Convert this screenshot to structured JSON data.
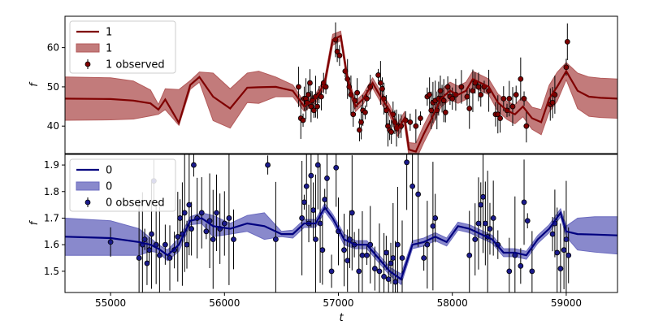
{
  "chart_data": [
    {
      "type": "line",
      "panel": "top",
      "xlabel": "",
      "ylabel": "f",
      "xlim": [
        54600,
        59450
      ],
      "ylim": [
        33,
        68
      ],
      "yticks": [
        40,
        50,
        60
      ],
      "legend": {
        "placement": "top-left",
        "entries": [
          {
            "label": "1",
            "kind": "line"
          },
          {
            "label": "1",
            "kind": "band"
          },
          {
            "label": "1 observed",
            "kind": "errorbar"
          }
        ]
      },
      "colors": {
        "line": "#7f0000",
        "band": "#b35a5a",
        "points": "#7f0000"
      },
      "series": [
        {
          "role": "model_mean",
          "x": [
            54600,
            55000,
            55200,
            55350,
            55420,
            55480,
            55600,
            55700,
            55780,
            55900,
            56050,
            56200,
            56300,
            56450,
            56600,
            56700,
            56800,
            56880,
            56950,
            57020,
            57080,
            57150,
            57220,
            57300,
            57380,
            57450,
            57520,
            57580,
            57620,
            57680,
            57750,
            57820,
            57900,
            57980,
            58050,
            58120,
            58180,
            58250,
            58320,
            58400,
            58480,
            58550,
            58620,
            58700,
            58780,
            58850,
            58920,
            59000,
            59100,
            59200,
            59300,
            59450
          ],
          "y": [
            47,
            46.9,
            46.5,
            45.8,
            44.2,
            46.8,
            40.8,
            50.5,
            52.5,
            47.5,
            44.5,
            49.8,
            49.9,
            50,
            49,
            45,
            47,
            51,
            62,
            63,
            52,
            45,
            47,
            51,
            47,
            44,
            39,
            42,
            34,
            33.5,
            38,
            42,
            47,
            49,
            48,
            49,
            52,
            51,
            50,
            46,
            44,
            43,
            45,
            42,
            41,
            47,
            50,
            54,
            49,
            47.5,
            47.2,
            47
          ]
        },
        {
          "role": "band_upper",
          "x": [
            54600,
            55000,
            55200,
            55350,
            55420,
            55480,
            55600,
            55700,
            55780,
            55900,
            56050,
            56200,
            56300,
            56450,
            56600,
            56700,
            56800,
            56880,
            56950,
            57020,
            57080,
            57150,
            57220,
            57300,
            57380,
            57450,
            57520,
            57580,
            57620,
            57680,
            57750,
            57820,
            57900,
            57980,
            58050,
            58120,
            58180,
            58250,
            58320,
            58400,
            58480,
            58550,
            58620,
            58700,
            58780,
            58850,
            58920,
            59000,
            59100,
            59200,
            59300,
            59450
          ],
          "y": [
            52.5,
            52.3,
            51.5,
            49.2,
            45.5,
            49.5,
            49.3,
            51.6,
            53.8,
            53.5,
            49.5,
            53.5,
            54,
            52.5,
            50.5,
            46.2,
            48.2,
            52.2,
            63.4,
            64.2,
            53.3,
            46.3,
            48.3,
            52.3,
            48.4,
            45.4,
            40.6,
            43.6,
            35.8,
            35.6,
            40.2,
            44.2,
            49.2,
            51.2,
            50.2,
            51.2,
            54,
            53,
            52,
            48.2,
            46.3,
            45.4,
            47.6,
            44.8,
            44.2,
            50.4,
            53.7,
            56.2,
            53.5,
            52.5,
            52.2,
            52
          ]
        },
        {
          "role": "band_lower",
          "x": [
            54600,
            55000,
            55200,
            55350,
            55420,
            55480,
            55600,
            55700,
            55780,
            55900,
            56050,
            56200,
            56300,
            56450,
            56600,
            56700,
            56800,
            56880,
            56950,
            57020,
            57080,
            57150,
            57220,
            57300,
            57380,
            57450,
            57520,
            57580,
            57620,
            57680,
            57750,
            57820,
            57900,
            57980,
            58050,
            58120,
            58180,
            58250,
            58320,
            58400,
            58480,
            58550,
            58620,
            58700,
            58780,
            58850,
            58920,
            59000,
            59100,
            59200,
            59300,
            59450
          ],
          "y": [
            41.5,
            41.6,
            41.8,
            42.6,
            43,
            44.2,
            40.2,
            49.4,
            51.2,
            41.4,
            39.5,
            46,
            45.8,
            47.5,
            47.5,
            43.8,
            45.8,
            49.8,
            60.6,
            61.8,
            50.7,
            43.7,
            45.7,
            49.7,
            45.6,
            42.6,
            37.4,
            40.4,
            32.2,
            31.4,
            35.8,
            39.8,
            44.8,
            46.8,
            45.8,
            46.8,
            50,
            49,
            48,
            43.8,
            41.7,
            40.6,
            42.4,
            39.2,
            37.8,
            43.6,
            46.3,
            51.8,
            44.5,
            42.5,
            42.2,
            42
          ]
        },
        {
          "role": "observed",
          "name": "1 observed",
          "x": [
            56650,
            56670,
            56690,
            56700,
            56715,
            56725,
            56735,
            56750,
            56760,
            56770,
            56785,
            56800,
            56815,
            56830,
            56850,
            56870,
            56890,
            56975,
            56990,
            57010,
            57060,
            57080,
            57095,
            57110,
            57130,
            57145,
            57165,
            57185,
            57200,
            57215,
            57235,
            57250,
            57280,
            57350,
            57370,
            57385,
            57400,
            57420,
            57435,
            57450,
            57465,
            57480,
            57495,
            57510,
            57530,
            57550,
            57590,
            57630,
            57680,
            57720,
            57780,
            57800,
            57815,
            57830,
            57850,
            57865,
            57880,
            57895,
            57910,
            57925,
            57940,
            57960,
            57980,
            58000,
            58030,
            58080,
            58130,
            58150,
            58180,
            58200,
            58230,
            58250,
            58280,
            58320,
            58380,
            58400,
            58420,
            58450,
            58480,
            58500,
            58530,
            58560,
            58600,
            58630,
            58650,
            58860,
            58880,
            58900,
            59000,
            59010
          ],
          "y": [
            50,
            42,
            41.5,
            47,
            47,
            46,
            48,
            51,
            45,
            46.5,
            44,
            47.5,
            45,
            48,
            47.5,
            51,
            50,
            62,
            59,
            58,
            54,
            52,
            50,
            48,
            43,
            46.5,
            48.5,
            39,
            41,
            44,
            43.5,
            47,
            50,
            53,
            51,
            49.5,
            47,
            44,
            40,
            39,
            38.5,
            43,
            41,
            39.5,
            40,
            40,
            41.5,
            41,
            40,
            42,
            47.5,
            48,
            44,
            46,
            46.5,
            44,
            47,
            49,
            47,
            46.5,
            43.5,
            50,
            47.5,
            47,
            48,
            50,
            47.5,
            44.5,
            49,
            51,
            50,
            48,
            50,
            49,
            43,
            43,
            42,
            47,
            44,
            47,
            45,
            48,
            52,
            47,
            40,
            45.5,
            46,
            48,
            55,
            61.5
          ]
        }
      ]
    },
    {
      "type": "line",
      "panel": "bottom",
      "xlabel": "t",
      "ylabel": "f",
      "xlim": [
        54600,
        59450
      ],
      "ylim": [
        1.42,
        1.94
      ],
      "xticks": [
        55000,
        56000,
        57000,
        58000,
        59000
      ],
      "yticks": [
        1.5,
        1.6,
        1.7,
        1.8,
        1.9
      ],
      "legend": {
        "placement": "top-left",
        "entries": [
          {
            "label": "0",
            "kind": "line"
          },
          {
            "label": "0",
            "kind": "band"
          },
          {
            "label": "0 observed",
            "kind": "errorbar"
          }
        ]
      },
      "colors": {
        "line": "#00007f",
        "band": "#6b6bbf",
        "points": "#1a1a8c"
      },
      "series": [
        {
          "role": "model_mean",
          "x": [
            54600,
            55000,
            55250,
            55350,
            55420,
            55500,
            55600,
            55700,
            55800,
            55900,
            56050,
            56200,
            56350,
            56500,
            56600,
            56700,
            56800,
            56880,
            56950,
            57050,
            57150,
            57250,
            57350,
            57450,
            57550,
            57650,
            57750,
            57850,
            57950,
            58050,
            58150,
            58250,
            58350,
            58450,
            58550,
            58650,
            58750,
            58850,
            58950,
            59000,
            59100,
            59250,
            59450
          ],
          "y": [
            1.63,
            1.625,
            1.61,
            1.6,
            1.585,
            1.56,
            1.6,
            1.69,
            1.7,
            1.67,
            1.66,
            1.68,
            1.67,
            1.64,
            1.64,
            1.68,
            1.68,
            1.74,
            1.7,
            1.62,
            1.6,
            1.6,
            1.55,
            1.5,
            1.47,
            1.6,
            1.61,
            1.63,
            1.61,
            1.67,
            1.66,
            1.64,
            1.62,
            1.57,
            1.57,
            1.56,
            1.62,
            1.66,
            1.72,
            1.65,
            1.64,
            1.638,
            1.635
          ]
        },
        {
          "role": "band_upper",
          "x": [
            54600,
            55000,
            55250,
            55350,
            55420,
            55500,
            55600,
            55700,
            55800,
            55900,
            56050,
            56200,
            56350,
            56500,
            56600,
            56700,
            56800,
            56880,
            56950,
            57050,
            57150,
            57250,
            57350,
            57450,
            57550,
            57650,
            57750,
            57850,
            57950,
            58050,
            58150,
            58250,
            58350,
            58450,
            58550,
            58650,
            58750,
            58850,
            58950,
            59000,
            59100,
            59250,
            59450
          ],
          "y": [
            1.7,
            1.69,
            1.66,
            1.625,
            1.6,
            1.58,
            1.625,
            1.705,
            1.72,
            1.71,
            1.68,
            1.71,
            1.72,
            1.65,
            1.655,
            1.695,
            1.695,
            1.755,
            1.715,
            1.64,
            1.615,
            1.615,
            1.565,
            1.515,
            1.49,
            1.615,
            1.625,
            1.645,
            1.625,
            1.685,
            1.675,
            1.655,
            1.635,
            1.585,
            1.585,
            1.575,
            1.635,
            1.675,
            1.735,
            1.67,
            1.7,
            1.705,
            1.705
          ]
        },
        {
          "role": "band_lower",
          "x": [
            54600,
            55000,
            55250,
            55350,
            55420,
            55500,
            55600,
            55700,
            55800,
            55900,
            56050,
            56200,
            56350,
            56500,
            56600,
            56700,
            56800,
            56880,
            56950,
            57050,
            57150,
            57250,
            57350,
            57450,
            57550,
            57650,
            57750,
            57850,
            57950,
            58050,
            58150,
            58250,
            58350,
            58450,
            58550,
            58650,
            58750,
            58850,
            58950,
            59000,
            59100,
            59250,
            59450
          ],
          "y": [
            1.56,
            1.56,
            1.56,
            1.575,
            1.57,
            1.54,
            1.575,
            1.675,
            1.68,
            1.63,
            1.64,
            1.65,
            1.62,
            1.63,
            1.625,
            1.665,
            1.665,
            1.725,
            1.685,
            1.6,
            1.585,
            1.585,
            1.535,
            1.485,
            1.45,
            1.585,
            1.595,
            1.615,
            1.595,
            1.655,
            1.645,
            1.625,
            1.605,
            1.555,
            1.555,
            1.545,
            1.605,
            1.645,
            1.705,
            1.63,
            1.58,
            1.572,
            1.565
          ]
        },
        {
          "role": "observed",
          "name": "0 observed",
          "x": [
            55000,
            55250,
            55280,
            55300,
            55320,
            55340,
            55360,
            55380,
            55400,
            55430,
            55480,
            55520,
            55560,
            55590,
            55610,
            55630,
            55650,
            55670,
            55690,
            55710,
            55730,
            55760,
            55800,
            55840,
            55870,
            55900,
            55930,
            55960,
            56000,
            56040,
            56080,
            56380,
            56450,
            56680,
            56700,
            56720,
            56740,
            56760,
            56780,
            56800,
            56820,
            56840,
            56860,
            56880,
            56900,
            56940,
            56980,
            57000,
            57050,
            57080,
            57100,
            57120,
            57140,
            57180,
            57210,
            57250,
            57280,
            57320,
            57360,
            57400,
            57420,
            57440,
            57460,
            57480,
            57500,
            57520,
            57560,
            57600,
            57650,
            57700,
            57750,
            57780,
            57830,
            57850,
            58150,
            58200,
            58230,
            58250,
            58270,
            58290,
            58310,
            58330,
            58360,
            58400,
            58500,
            58550,
            58600,
            58630,
            58660,
            58700,
            58880,
            58900,
            58920,
            58950,
            58980,
            59000,
            59020
          ],
          "y": [
            1.61,
            1.55,
            1.6,
            1.62,
            1.53,
            1.58,
            1.64,
            1.84,
            1.6,
            1.56,
            1.6,
            1.55,
            1.58,
            1.63,
            1.7,
            1.64,
            1.72,
            1.6,
            1.75,
            1.66,
            1.9,
            1.7,
            1.72,
            1.65,
            1.69,
            1.62,
            1.72,
            1.66,
            1.68,
            1.7,
            1.62,
            1.9,
            1.62,
            1.7,
            1.76,
            1.82,
            1.68,
            1.86,
            1.73,
            1.62,
            1.9,
            1.68,
            1.58,
            1.77,
            1.85,
            1.5,
            1.89,
            1.65,
            1.58,
            1.54,
            1.62,
            1.72,
            1.6,
            1.5,
            1.56,
            1.56,
            1.6,
            1.51,
            1.5,
            1.48,
            1.57,
            1.47,
            1.53,
            1.55,
            1.46,
            1.6,
            1.55,
            1.91,
            1.82,
            1.79,
            1.55,
            1.6,
            1.67,
            1.7,
            1.56,
            1.62,
            1.68,
            1.75,
            1.78,
            1.68,
            1.63,
            1.66,
            1.7,
            1.6,
            1.5,
            1.56,
            1.52,
            1.76,
            1.69,
            1.5,
            1.64,
            1.68,
            1.57,
            1.51,
            1.58,
            1.62,
            1.56
          ]
        }
      ]
    }
  ]
}
